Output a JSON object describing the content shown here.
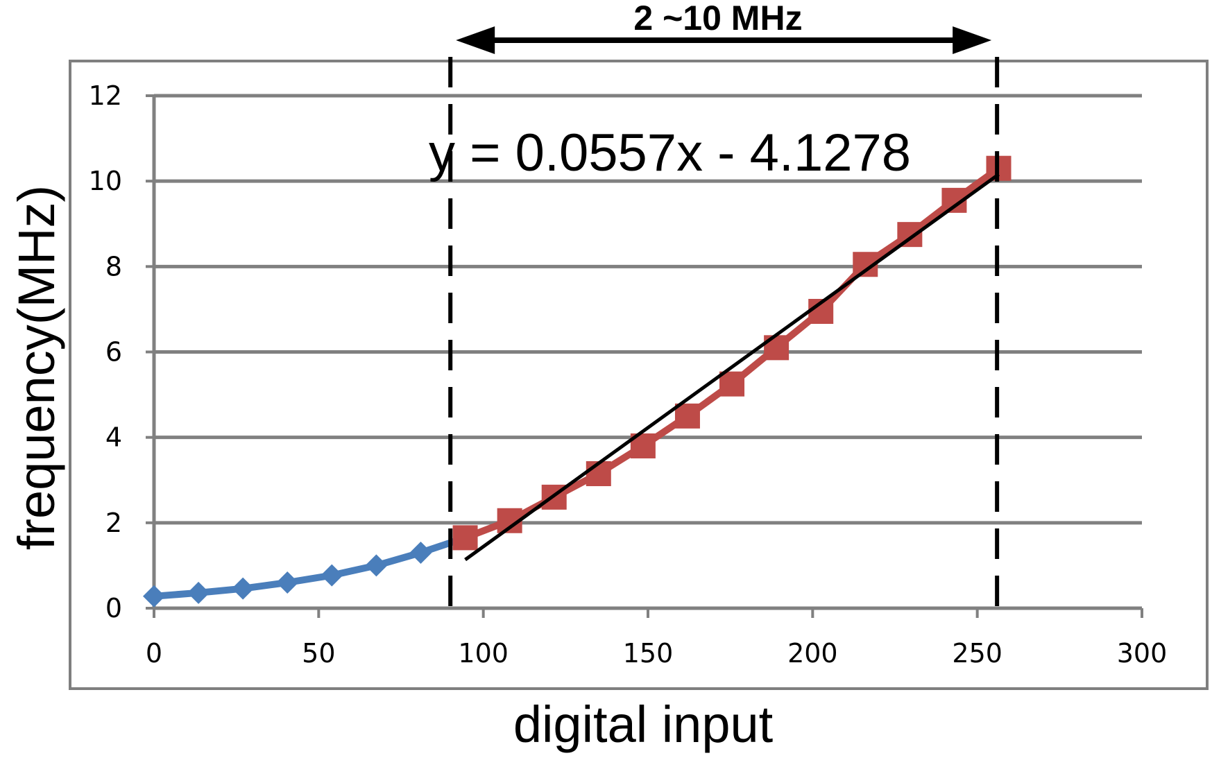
{
  "chart_data": {
    "type": "line",
    "title": "",
    "xlabel": "digital input",
    "ylabel": "frequency(MHz)",
    "xlim": [
      0,
      300
    ],
    "ylim": [
      0,
      12
    ],
    "x_ticks": [
      "0",
      "50",
      "100",
      "150",
      "200",
      "250",
      "300"
    ],
    "y_ticks": [
      "0",
      "2",
      "4",
      "6",
      "8",
      "10",
      "12"
    ],
    "grid": "horizontal",
    "legend": "none",
    "series": [
      {
        "marker": "diamond",
        "color": "#4a7ebb",
        "x": [
          0,
          13.5,
          27,
          40.5,
          54,
          67.5,
          81,
          94.5
        ],
        "y": [
          0.28,
          0.36,
          0.46,
          0.6,
          0.77,
          1.0,
          1.3,
          1.65
        ]
      },
      {
        "marker": "square",
        "color": "#be4b48",
        "x": [
          94.5,
          108,
          121.5,
          135,
          148.5,
          162,
          175.5,
          189,
          202.5,
          216,
          229.5,
          243,
          256.5
        ],
        "y": [
          1.65,
          2.05,
          2.6,
          3.15,
          3.8,
          4.5,
          5.25,
          6.1,
          6.95,
          8.05,
          8.75,
          9.55,
          10.3
        ]
      }
    ],
    "trendline": {
      "color": "#000000",
      "slope": 0.0557,
      "intercept": -4.1278,
      "x_start": 94.5,
      "x_end": 256.5,
      "equation": "y = 0.0557x - 4.1278"
    },
    "range_markers": {
      "x": [
        90,
        256
      ],
      "label": "2 ~10 MHz"
    }
  }
}
